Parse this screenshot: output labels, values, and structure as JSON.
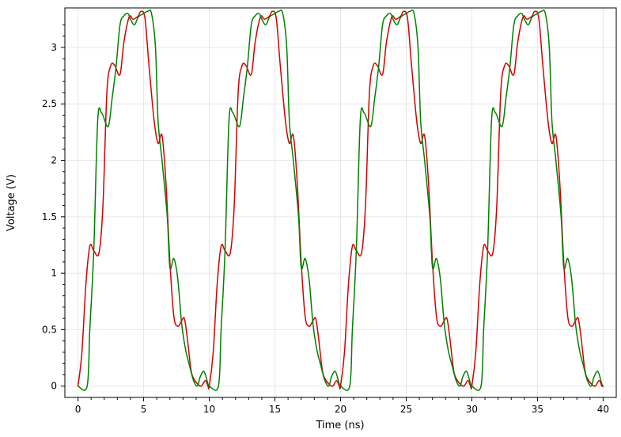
{
  "chart_data": {
    "type": "line",
    "title": "",
    "xlabel": "Time (ns)",
    "ylabel": "Voltage (V)",
    "xlim": [
      -1,
      41
    ],
    "ylim": [
      -0.1,
      3.35
    ],
    "xticks": [
      0,
      5,
      10,
      15,
      20,
      25,
      30,
      35,
      40
    ],
    "yticks": [
      0,
      0.5,
      1,
      1.5,
      2,
      2.5,
      3
    ],
    "xtick_labels": [
      "0",
      "5",
      "10",
      "15",
      "20",
      "25",
      "30",
      "35",
      "40"
    ],
    "ytick_labels": [
      "0",
      "0.5",
      "1",
      "1.5",
      "2",
      "2.5",
      "3"
    ],
    "grid": true,
    "legend": "none",
    "period_ns": 10,
    "series": [
      {
        "color": "#d40000",
        "x": [
          0,
          0.3,
          0.6,
          0.9,
          1.2,
          1.6,
          1.9,
          2.2,
          2.5,
          2.8,
          3.2,
          3.5,
          3.9,
          4.2,
          4.6,
          4.8,
          5.1,
          5.4,
          5.8,
          6.1,
          6.4,
          6.7,
          7.0,
          7.3,
          7.6,
          7.9,
          8.1,
          8.3,
          8.6,
          8.8,
          9.1,
          9.4,
          9.7,
          9.9
        ],
        "values": [
          0.0,
          0.3,
          0.9,
          1.24,
          1.2,
          1.18,
          1.6,
          2.6,
          2.84,
          2.84,
          2.76,
          3.05,
          3.27,
          3.25,
          3.28,
          3.32,
          3.26,
          2.85,
          2.35,
          2.15,
          2.22,
          1.8,
          1.1,
          0.62,
          0.53,
          0.58,
          0.6,
          0.45,
          0.15,
          0.07,
          0.02,
          0.0,
          0.05,
          0.0
        ]
      },
      {
        "color": "#008000",
        "x": [
          0,
          0.7,
          0.9,
          1.2,
          1.5,
          1.8,
          2.3,
          2.6,
          2.9,
          3.2,
          3.5,
          3.8,
          4.0,
          4.3,
          4.6,
          5.0,
          5.3,
          5.6,
          5.9,
          6.1,
          6.4,
          6.8,
          7.0,
          7.3,
          7.6,
          7.9,
          8.2,
          8.5,
          8.8,
          9.1,
          9.3,
          9.6,
          9.9
        ],
        "values": [
          0.0,
          0.0,
          0.5,
          1.2,
          2.35,
          2.42,
          2.3,
          2.55,
          2.83,
          3.2,
          3.28,
          3.3,
          3.25,
          3.2,
          3.27,
          3.3,
          3.32,
          3.3,
          3.0,
          2.35,
          2.0,
          1.5,
          1.05,
          1.13,
          0.95,
          0.55,
          0.32,
          0.18,
          0.05,
          0.0,
          0.08,
          0.13,
          0.02
        ]
      }
    ]
  }
}
